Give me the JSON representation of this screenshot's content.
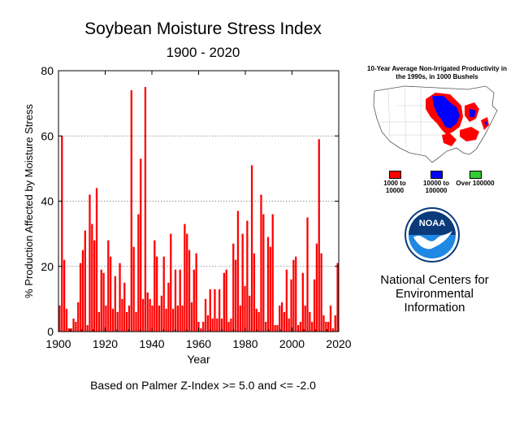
{
  "header": {
    "title": "Soybean Moisture Stress Index",
    "subtitle": "1900 - 2020",
    "footnote": "Based on Palmer Z-Index >= 5.0 and <= -2.0"
  },
  "chart_data": {
    "type": "bar",
    "title": "Soybean Moisture Stress Index",
    "subtitle": "1900 - 2020",
    "xlabel": "Year",
    "ylabel": "% Production Affected by Moisture Stress",
    "xlim": [
      1900,
      2020
    ],
    "ylim": [
      0,
      80
    ],
    "xticks": [
      1900,
      1920,
      1940,
      1960,
      1980,
      2000,
      2020
    ],
    "yticks": [
      0,
      20,
      40,
      60,
      80
    ],
    "grid": "horizontal dotted at 20, 40, 60",
    "bar_color": "#ff0000",
    "x": [
      1900,
      1901,
      1902,
      1903,
      1904,
      1905,
      1906,
      1907,
      1908,
      1909,
      1910,
      1911,
      1912,
      1913,
      1914,
      1915,
      1916,
      1917,
      1918,
      1919,
      1920,
      1921,
      1922,
      1923,
      1924,
      1925,
      1926,
      1927,
      1928,
      1929,
      1930,
      1931,
      1932,
      1933,
      1934,
      1935,
      1936,
      1937,
      1938,
      1939,
      1940,
      1941,
      1942,
      1943,
      1944,
      1945,
      1946,
      1947,
      1948,
      1949,
      1950,
      1951,
      1952,
      1953,
      1954,
      1955,
      1956,
      1957,
      1958,
      1959,
      1960,
      1961,
      1962,
      1963,
      1964,
      1965,
      1966,
      1967,
      1968,
      1969,
      1970,
      1971,
      1972,
      1973,
      1974,
      1975,
      1976,
      1977,
      1978,
      1979,
      1980,
      1981,
      1982,
      1983,
      1984,
      1985,
      1986,
      1987,
      1988,
      1989,
      1990,
      1991,
      1992,
      1993,
      1994,
      1995,
      1996,
      1997,
      1998,
      1999,
      2000,
      2001,
      2002,
      2003,
      2004,
      2005,
      2006,
      2007,
      2008,
      2009,
      2010,
      2011,
      2012,
      2013,
      2014,
      2015,
      2016,
      2017,
      2018,
      2019,
      2020
    ],
    "values": [
      8,
      60,
      22,
      7,
      1,
      1,
      4,
      3,
      9,
      21,
      25,
      31,
      2,
      42,
      33,
      28,
      44,
      6,
      19,
      18,
      8,
      28,
      23,
      7,
      17,
      6,
      21,
      10,
      15,
      6,
      8,
      74,
      26,
      6,
      36,
      53,
      10,
      75,
      12,
      10,
      8,
      28,
      23,
      8,
      11,
      23,
      7,
      15,
      30,
      7,
      19,
      8,
      19,
      8,
      33,
      30,
      25,
      9,
      19,
      24,
      3,
      1,
      3,
      10,
      5,
      13,
      4,
      13,
      4,
      13,
      4,
      18,
      19,
      3,
      4,
      27,
      22,
      37,
      8,
      30,
      14,
      34,
      11,
      51,
      24,
      7,
      6,
      42,
      36,
      3,
      29,
      26,
      36,
      2,
      2,
      8,
      9,
      6,
      19,
      4,
      16,
      22,
      23,
      2,
      3,
      18,
      8,
      35,
      6,
      3,
      16,
      27,
      59,
      24,
      5,
      3,
      3,
      8,
      1,
      5,
      21
    ]
  },
  "sidebar": {
    "map_title": "10-Year Average Non-Irrigated Productivity in the 1990s, in 1000 Bushels",
    "legend": [
      {
        "label": "1000 to 10000",
        "color": "#ff0000"
      },
      {
        "label": "10000 to 100000",
        "color": "#0000ff"
      },
      {
        "label": "Over 100000",
        "color": "#33cc33"
      }
    ],
    "logo_text": "NOAA",
    "org_name": "National Centers for Environmental Information"
  }
}
